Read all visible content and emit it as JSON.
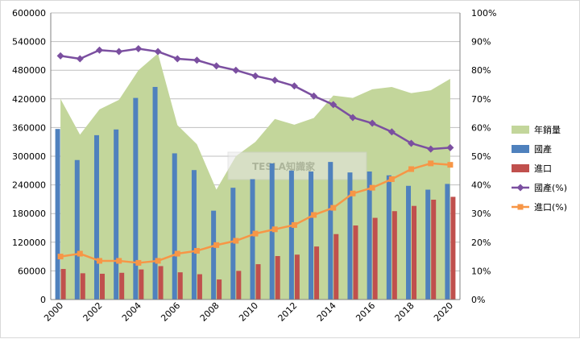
{
  "chart_data": {
    "type": "bar",
    "x": [
      2000,
      2001,
      2002,
      2003,
      2004,
      2005,
      2006,
      2007,
      2008,
      2009,
      2010,
      2011,
      2012,
      2013,
      2014,
      2015,
      2016,
      2017,
      2018,
      2019,
      2020
    ],
    "x_tick_labels": [
      "2000",
      "2002",
      "2004",
      "2006",
      "2008",
      "2010",
      "2012",
      "2014",
      "2016",
      "2018",
      "2020"
    ],
    "y_left_ticks": [
      "0",
      "60000",
      "120000",
      "180000",
      "240000",
      "300000",
      "360000",
      "420000",
      "480000",
      "540000",
      "600000"
    ],
    "y_right_ticks": [
      "0%",
      "10%",
      "20%",
      "30%",
      "40%",
      "50%",
      "60%",
      "70%",
      "80%",
      "90%",
      "100%"
    ],
    "ylim_left": [
      0,
      600000
    ],
    "ylim_right": [
      0,
      100
    ],
    "grid": "horizontal",
    "legend_position": "right",
    "series": [
      {
        "name": "年銷量",
        "kind": "area",
        "axis": "left",
        "color": "#c3d69b",
        "values": [
          420000,
          345000,
          398000,
          418000,
          480000,
          515000,
          365000,
          325000,
          230000,
          300000,
          330000,
          378000,
          366000,
          380000,
          427000,
          422000,
          440000,
          445000,
          432000,
          438000,
          462000
        ]
      },
      {
        "name": "國產",
        "kind": "bar",
        "axis": "left",
        "color": "#4f81bd",
        "values": [
          357000,
          292000,
          344000,
          356000,
          422000,
          445000,
          306000,
          271000,
          186000,
          234000,
          252000,
          285000,
          270000,
          268000,
          288000,
          266000,
          268000,
          260000,
          238000,
          230000,
          242000
        ]
      },
      {
        "name": "進口",
        "kind": "bar",
        "axis": "left",
        "color": "#c0504d",
        "values": [
          64000,
          55000,
          54000,
          56000,
          63000,
          70000,
          57000,
          53000,
          42000,
          60000,
          74000,
          91000,
          94000,
          111000,
          137000,
          155000,
          171000,
          185000,
          196000,
          209000,
          215000
        ]
      },
      {
        "name": "國產(%)",
        "kind": "line",
        "axis": "right",
        "color": "#7b4fa0",
        "marker": "diamond",
        "values": [
          85,
          84,
          87,
          86.5,
          87.5,
          86.5,
          84,
          83.5,
          81.5,
          80,
          78,
          76.5,
          74.5,
          71,
          68,
          63.5,
          61.5,
          58.5,
          54.5,
          52.5,
          53
        ]
      },
      {
        "name": "進口(%)",
        "kind": "line",
        "axis": "right",
        "color": "#f79646",
        "marker": "square",
        "values": [
          15,
          16,
          13.5,
          13.5,
          12.8,
          13.5,
          16,
          17,
          19,
          20.5,
          23,
          24.5,
          26,
          29.5,
          32,
          37,
          39,
          42,
          45.5,
          47.5,
          47
        ]
      }
    ],
    "watermark": "TESLA知識家"
  }
}
